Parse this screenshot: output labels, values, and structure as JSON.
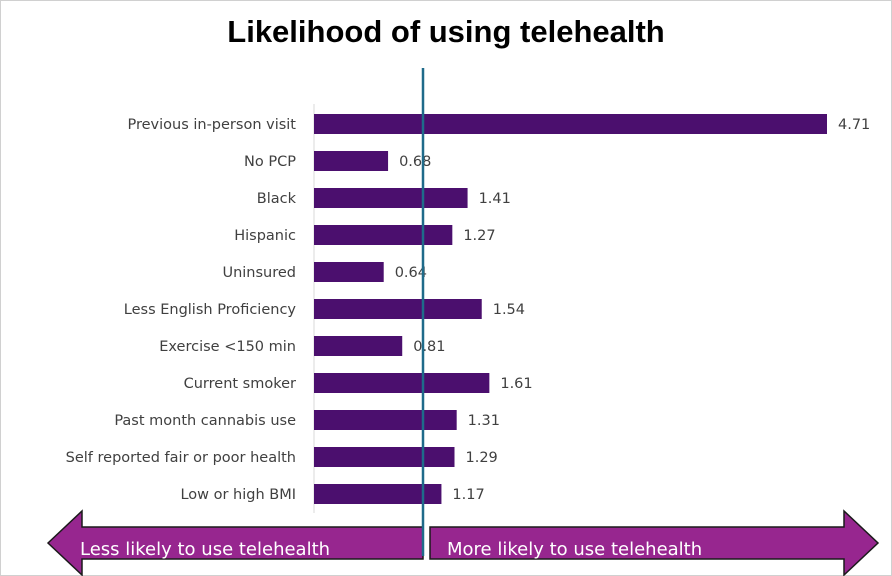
{
  "chart_data": {
    "type": "bar",
    "orientation": "horizontal",
    "title": "Likelihood of using telehealth",
    "categories": [
      "Previous in-person visit",
      "No PCP",
      "Black",
      "Hispanic",
      "Uninsured",
      "Less English Proficiency",
      "Exercise <150 min",
      "Current smoker",
      "Past month cannabis use",
      "Self reported fair or poor health",
      "Low or high BMI"
    ],
    "values": [
      4.71,
      0.68,
      1.41,
      1.27,
      0.64,
      1.54,
      0.81,
      1.61,
      1.31,
      1.29,
      1.17
    ],
    "xlim": [
      0,
      4.71
    ],
    "reference_line": 1,
    "grid": false,
    "legend": "none",
    "bar_color": "#4b0f6e",
    "reference_line_color": "#1f6b8a",
    "arrow_color": "#97268f",
    "arrows": {
      "left": "Less likely to use telehealth",
      "right": "More likely to use telehealth"
    }
  }
}
